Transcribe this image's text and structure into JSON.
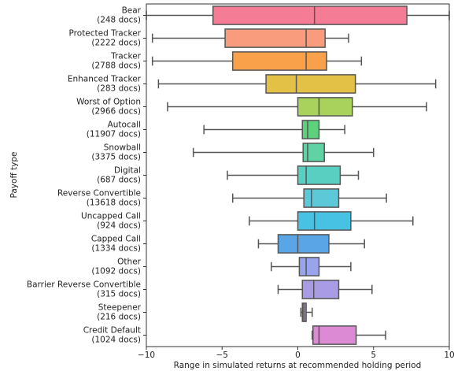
{
  "chart_data": {
    "type": "boxplot",
    "xlabel": "Range in simulated returns at recommended holding period",
    "ylabel": "Payoff type",
    "categories": [
      "Bear",
      "Protected Tracker",
      "Tracker",
      "Enhanced Tracker",
      "Worst of Option",
      "Autocall",
      "Snowball",
      "Digital",
      "Reverse Convertible",
      "Uncapped Call",
      "Capped Call",
      "Other",
      "Barrier Reverse Convertible",
      "Steepener",
      "Credit Default"
    ],
    "category_counts": [
      "(248 docs)",
      "(2222 docs)",
      "(2788 docs)",
      "(283 docs)",
      "(2966 docs)",
      "(11907 docs)",
      "(3375 docs)",
      "(687 docs)",
      "(13618 docs)",
      "(924 docs)",
      "(1334 docs)",
      "(1092 docs)",
      "(315 docs)",
      "(216 docs)",
      "(1024 docs)"
    ],
    "colors": [
      "#f47c94",
      "#f99b7d",
      "#f8a04a",
      "#e2c146",
      "#a8d25b",
      "#5ed17c",
      "#60d3a4",
      "#58cfc0",
      "#5cc8d8",
      "#48c2e2",
      "#5aa5e6",
      "#9aa4ec",
      "#a99be4",
      "#b27fd6",
      "#dc8ad3"
    ],
    "boxes": [
      {
        "low": -10,
        "q1": -5.6,
        "median": 1.1,
        "q3": 7.2,
        "high": 10
      },
      {
        "low": -9.6,
        "q1": -4.8,
        "median": 0.55,
        "q3": 1.8,
        "high": 3.35
      },
      {
        "low": -9.6,
        "q1": -4.3,
        "median": 0.55,
        "q3": 1.9,
        "high": 4.2
      },
      {
        "low": -9.2,
        "q1": -2.1,
        "median": -0.1,
        "q3": 3.8,
        "high": 9.1
      },
      {
        "low": -8.6,
        "q1": 0,
        "median": 1.4,
        "q3": 3.6,
        "high": 8.5
      },
      {
        "low": -6.2,
        "q1": 0.3,
        "median": 0.65,
        "q3": 1.4,
        "high": 3.1
      },
      {
        "low": -6.9,
        "q1": 0.35,
        "median": 0.65,
        "q3": 1.75,
        "high": 5.0
      },
      {
        "low": -4.65,
        "q1": 0,
        "median": 0.55,
        "q3": 2.8,
        "high": 4.0
      },
      {
        "low": -4.3,
        "q1": 0.4,
        "median": 0.9,
        "q3": 2.7,
        "high": 5.85
      },
      {
        "low": -3.2,
        "q1": 0,
        "median": 1.1,
        "q3": 3.5,
        "high": 7.6
      },
      {
        "low": -2.6,
        "q1": -1.3,
        "median": 0,
        "q3": 2.05,
        "high": 4.4
      },
      {
        "low": -1.75,
        "q1": 0.1,
        "median": 0.55,
        "q3": 1.4,
        "high": 3.5
      },
      {
        "low": -1.3,
        "q1": 0.3,
        "median": 1.05,
        "q3": 2.7,
        "high": 4.9
      },
      {
        "low": 0.2,
        "q1": 0.3,
        "median": 0.4,
        "q3": 0.55,
        "high": 0.95
      },
      {
        "low": 0.95,
        "q1": 1.0,
        "median": 1.4,
        "q3": 3.85,
        "high": 5.8
      }
    ],
    "xlim": [
      -10,
      10
    ],
    "xticks": [
      {
        "value": -10,
        "label": "−10"
      },
      {
        "value": -5,
        "label": "−5"
      },
      0,
      5,
      10
    ]
  }
}
